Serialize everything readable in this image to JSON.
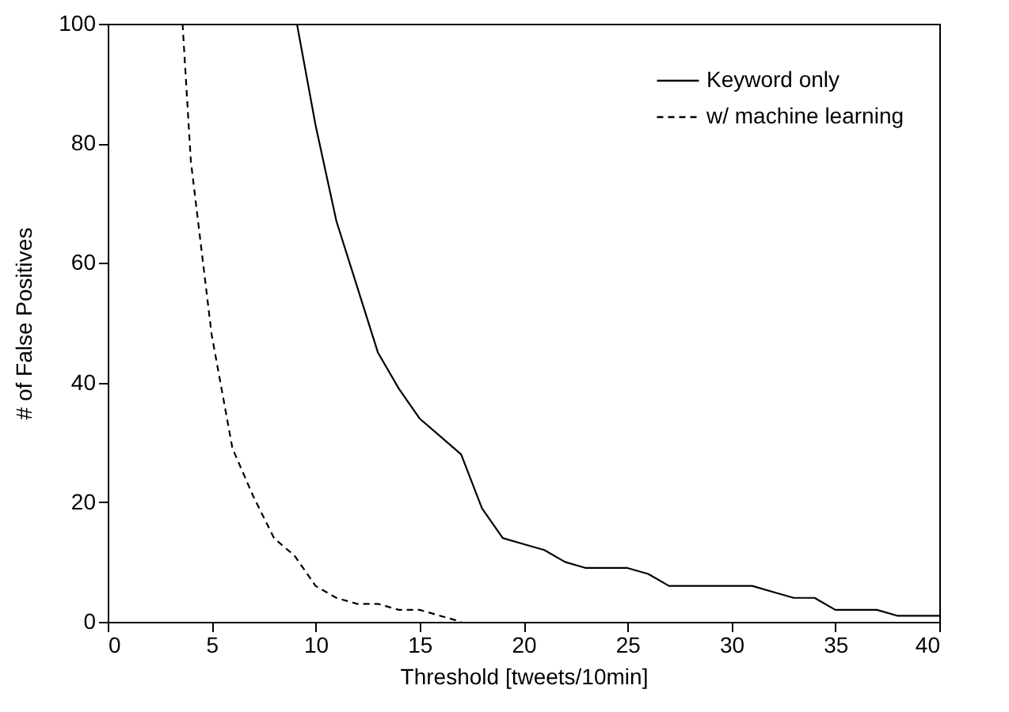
{
  "chart_data": {
    "type": "line",
    "xlabel": "Threshold [tweets/10min]",
    "ylabel": "# of False Positives",
    "xlim": [
      0,
      40
    ],
    "xticks": [
      0,
      5,
      10,
      15,
      20,
      25,
      30,
      35,
      40
    ],
    "ylim": [
      0,
      100
    ],
    "yticks": [
      0,
      20,
      40,
      60,
      80,
      100
    ],
    "grid": false,
    "legend": "top right",
    "marker": "none",
    "series": [
      {
        "name": "Keyword only",
        "color": "#000000",
        "line_style": "solid",
        "x": [
          9.1,
          10,
          11,
          12,
          13,
          14,
          15,
          16,
          17,
          18,
          19,
          20,
          21,
          22,
          23,
          24,
          25,
          26,
          27,
          28,
          29,
          30,
          31,
          32,
          33,
          34,
          35,
          36,
          37,
          38,
          39,
          40
        ],
        "values": [
          100,
          83,
          67,
          56,
          45,
          39,
          34,
          31,
          28,
          19,
          14,
          13,
          12,
          10,
          9,
          9,
          9,
          8,
          6,
          6,
          6,
          6,
          6,
          5,
          4,
          4,
          2,
          2,
          2,
          1,
          1,
          1
        ]
      },
      {
        "name": "w/ machine learning",
        "color": "#000000",
        "line_style": "dashed",
        "x": [
          3.6,
          4,
          5,
          6,
          7,
          8,
          9,
          10,
          11,
          12,
          13,
          14,
          15,
          16,
          17
        ],
        "values": [
          100,
          77,
          48,
          29,
          21,
          14,
          11,
          6,
          4,
          3,
          3,
          2,
          2,
          1,
          0
        ]
      }
    ]
  }
}
